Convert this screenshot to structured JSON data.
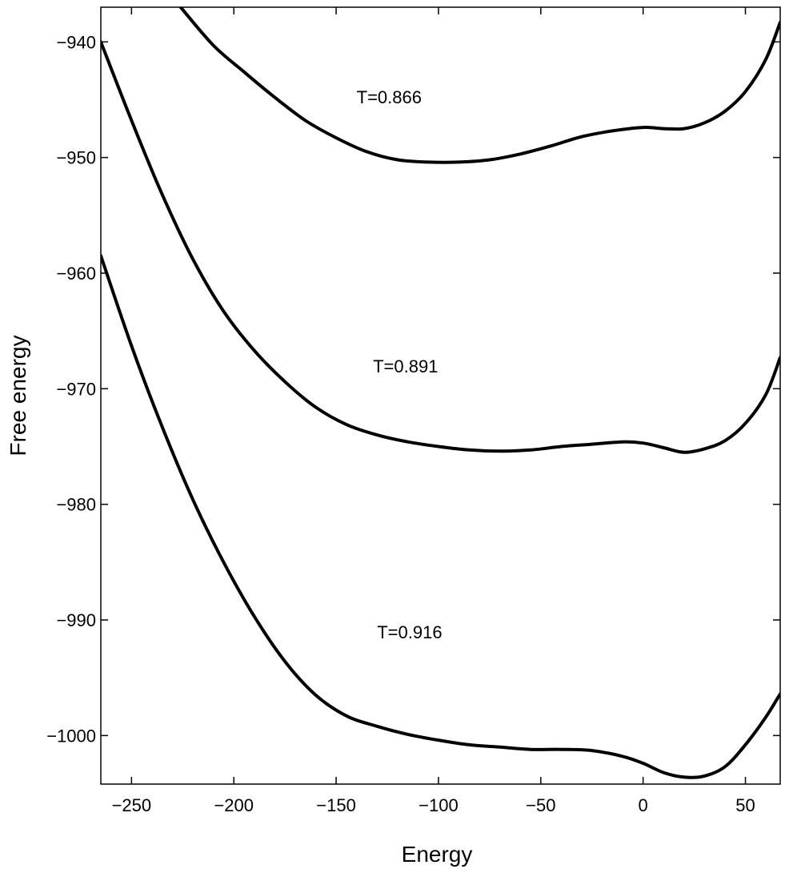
{
  "chart_data": {
    "type": "line",
    "title": "",
    "xlabel": "Energy",
    "ylabel": "Free energy",
    "xlim": [
      -265,
      67
    ],
    "ylim": [
      -1004.2,
      -937
    ],
    "grid": false,
    "xticks": [
      -250,
      -200,
      -150,
      -100,
      -50,
      0,
      50
    ],
    "xtick_labels": [
      "−250",
      "−200",
      "−150",
      "−100",
      "−50",
      "0",
      "50"
    ],
    "yticks": [
      -940,
      -950,
      -960,
      -970,
      -980,
      -990,
      -1000
    ],
    "ytick_labels": [
      "−940",
      "−950",
      "−960",
      "−970",
      "−980",
      "−990",
      "−1000"
    ],
    "line_color": "#000000",
    "series": [
      {
        "name": "T=0.866",
        "x": [
          -226,
          -210,
          -195,
          -180,
          -165,
          -150,
          -135,
          -120,
          -105,
          -90,
          -75,
          -60,
          -45,
          -30,
          -15,
          0,
          10,
          20,
          30,
          40,
          50,
          60,
          67
        ],
        "y": [
          -937,
          -940.3,
          -942.6,
          -944.8,
          -946.8,
          -948.3,
          -949.5,
          -950.2,
          -950.4,
          -950.4,
          -950.2,
          -949.7,
          -949.0,
          -948.2,
          -947.7,
          -947.4,
          -947.5,
          -947.5,
          -947.0,
          -946.0,
          -944.3,
          -941.5,
          -938.3
        ]
      },
      {
        "name": "T=0.891",
        "x": [
          -265,
          -250,
          -235,
          -220,
          -205,
          -190,
          -175,
          -160,
          -145,
          -130,
          -115,
          -100,
          -85,
          -70,
          -55,
          -40,
          -25,
          -10,
          0,
          10,
          20,
          30,
          40,
          50,
          60,
          67
        ],
        "y": [
          -940,
          -946.8,
          -953.2,
          -958.8,
          -963.3,
          -966.7,
          -969.4,
          -971.6,
          -973.1,
          -974.0,
          -974.6,
          -975.0,
          -975.3,
          -975.4,
          -975.3,
          -975.0,
          -974.8,
          -974.6,
          -974.7,
          -975.1,
          -975.5,
          -975.2,
          -974.5,
          -973.0,
          -970.5,
          -967.3
        ]
      },
      {
        "name": "T=0.916",
        "x": [
          -265,
          -250,
          -235,
          -220,
          -205,
          -190,
          -175,
          -160,
          -145,
          -130,
          -115,
          -100,
          -85,
          -70,
          -55,
          -40,
          -25,
          -10,
          0,
          10,
          20,
          30,
          40,
          50,
          60,
          67
        ],
        "y": [
          -958.5,
          -966.3,
          -973.3,
          -979.6,
          -985.0,
          -989.7,
          -993.6,
          -996.5,
          -998.3,
          -999.2,
          -999.9,
          -1000.4,
          -1000.8,
          -1001.0,
          -1001.2,
          -1001.2,
          -1001.3,
          -1001.8,
          -1002.4,
          -1003.2,
          -1003.6,
          -1003.5,
          -1002.7,
          -1000.8,
          -998.4,
          -996.4
        ]
      }
    ],
    "annotations": [
      {
        "text": "T=0.866",
        "x": -140,
        "y": -945.3
      },
      {
        "text": "T=0.891",
        "x": -132,
        "y": -968.6
      },
      {
        "text": "T=0.916",
        "x": -130,
        "y": -991.6
      }
    ]
  }
}
